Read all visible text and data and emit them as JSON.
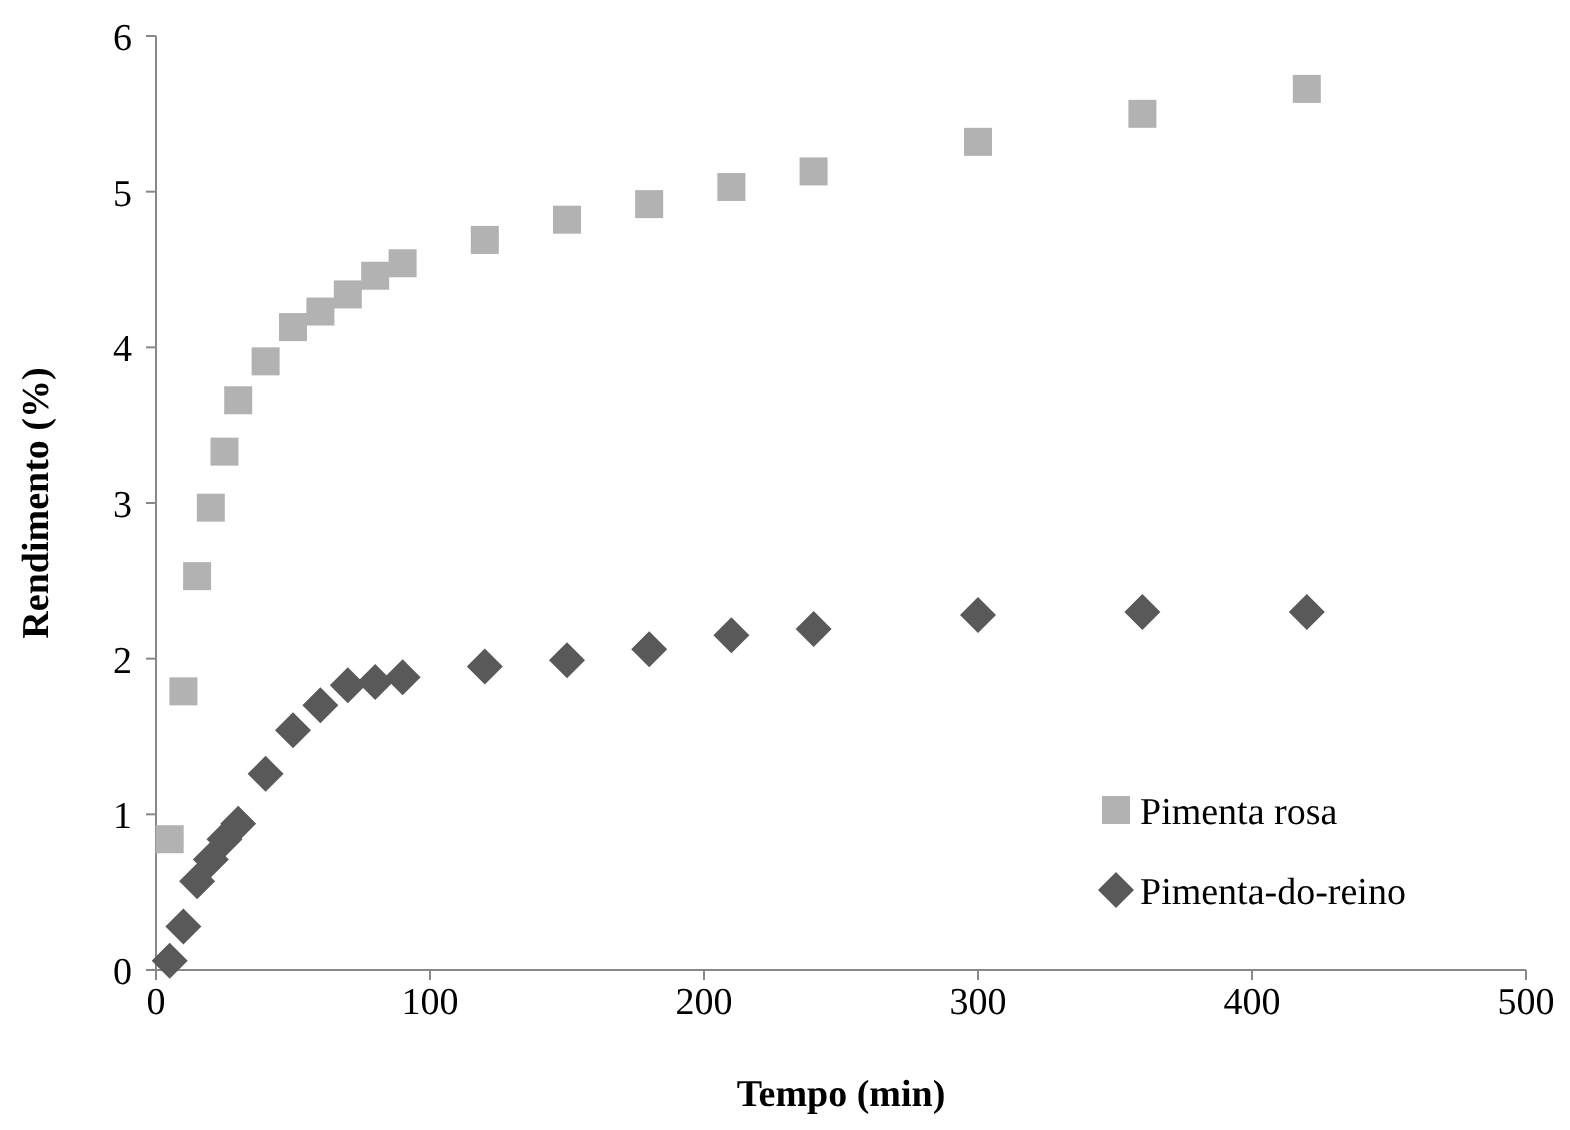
{
  "chart_data": {
    "type": "scatter",
    "xlabel": "Tempo (min)",
    "ylabel": "Rendimento  (%)",
    "xlim": [
      0,
      500
    ],
    "xticks": [
      0,
      100,
      200,
      300,
      400,
      500
    ],
    "ylim": [
      0,
      6
    ],
    "yticks": [
      0,
      1,
      2,
      3,
      4,
      5,
      6
    ],
    "grid": false,
    "legend": "bottom right",
    "series": [
      {
        "name": "Pimenta rosa",
        "color": "#b2b2b2",
        "marker": "square",
        "x": [
          5,
          10,
          15,
          20,
          25,
          30,
          40,
          50,
          60,
          70,
          80,
          90,
          120,
          150,
          180,
          210,
          240,
          300,
          360,
          420
        ],
        "values": [
          0.84,
          1.79,
          2.53,
          2.97,
          3.33,
          3.66,
          3.91,
          4.13,
          4.23,
          4.34,
          4.46,
          4.54,
          4.69,
          4.82,
          4.92,
          5.03,
          5.13,
          5.32,
          5.5,
          5.66
        ]
      },
      {
        "name": "Pimenta-do-reino",
        "color": "#595959",
        "marker": "diamond",
        "x": [
          5,
          10,
          15,
          20,
          25,
          30,
          40,
          50,
          60,
          70,
          80,
          90,
          120,
          150,
          180,
          210,
          240,
          300,
          360,
          420
        ],
        "values": [
          0.06,
          0.28,
          0.57,
          0.71,
          0.84,
          0.94,
          1.26,
          1.54,
          1.7,
          1.83,
          1.85,
          1.88,
          1.95,
          1.99,
          2.06,
          2.15,
          2.19,
          2.28,
          2.3,
          2.3
        ]
      }
    ]
  }
}
